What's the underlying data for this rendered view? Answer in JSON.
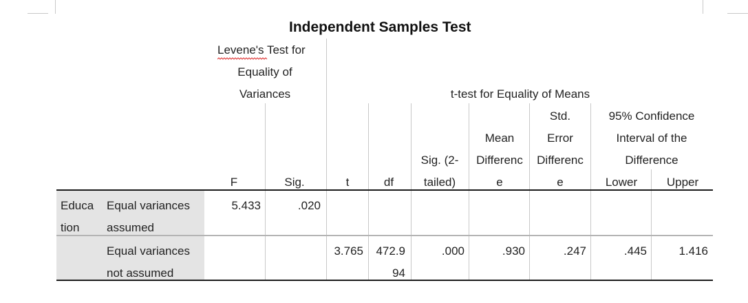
{
  "table": {
    "title": "Independent Samples Test",
    "levene_header": [
      "Levene's",
      "Test for",
      "Equality of",
      "Variances"
    ],
    "ttest_header": "t-test for Equality of Means",
    "columns": {
      "F": "F",
      "Sig": "Sig.",
      "t": "t",
      "df": "df",
      "sig2": [
        "Sig. (2-",
        "tailed)"
      ],
      "mean_diff": [
        "Mean",
        "Differenc",
        "e"
      ],
      "std_err": [
        "Std.",
        "Error",
        "Differenc",
        "e"
      ],
      "ci_header": [
        "95% Confidence",
        "Interval of the",
        "Difference"
      ],
      "lower": "Lower",
      "upper": "Upper"
    },
    "variable": [
      "Educa",
      "tion"
    ],
    "rows": [
      {
        "label": [
          "Equal variances",
          "assumed"
        ],
        "F": "5.433",
        "Sig": ".020",
        "t": "",
        "df": "",
        "sig2": "",
        "mean_diff": "",
        "std_err": "",
        "lower": "",
        "upper": ""
      },
      {
        "label": [
          "Equal variances",
          "not assumed"
        ],
        "F": "",
        "Sig": "",
        "t": "3.765",
        "df": [
          "472.9",
          "94"
        ],
        "sig2": ".000",
        "mean_diff": ".930",
        "std_err": ".247",
        "lower": ".445",
        "upper": "1.416"
      }
    ]
  }
}
